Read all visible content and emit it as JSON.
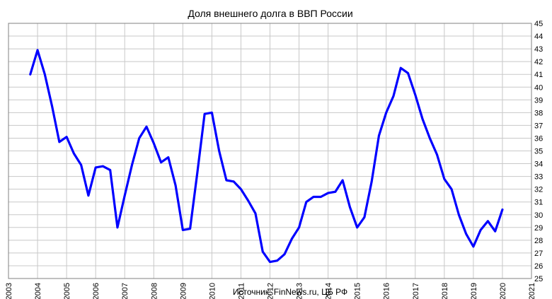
{
  "chart_data": {
    "type": "line",
    "title": "Доля внешнего долга в ВВП России",
    "source": "Источник: FinNews.ru, ЦБ РФ",
    "xlabel": "",
    "ylabel": "",
    "xlim": [
      2003,
      2021
    ],
    "ylim": [
      25,
      45
    ],
    "x_ticks": [
      2003,
      2004,
      2005,
      2006,
      2007,
      2008,
      2009,
      2010,
      2011,
      2012,
      2013,
      2014,
      2015,
      2016,
      2017,
      2018,
      2019,
      2020,
      2021
    ],
    "y_ticks": [
      25,
      26,
      27,
      28,
      29,
      30,
      31,
      32,
      33,
      34,
      35,
      36,
      37,
      38,
      39,
      40,
      41,
      42,
      43,
      44,
      45
    ],
    "y_axis_side": "right",
    "grid": true,
    "series": [
      {
        "color": "#0000ff",
        "x": [
          2003.75,
          2004.0,
          2004.25,
          2004.5,
          2004.75,
          2005.0,
          2005.25,
          2005.5,
          2005.75,
          2006.0,
          2006.25,
          2006.5,
          2006.75,
          2007.0,
          2007.25,
          2007.5,
          2007.75,
          2008.0,
          2008.25,
          2008.5,
          2008.75,
          2009.0,
          2009.25,
          2009.5,
          2009.75,
          2010.0,
          2010.25,
          2010.5,
          2010.75,
          2011.0,
          2011.25,
          2011.5,
          2011.75,
          2012.0,
          2012.25,
          2012.5,
          2012.75,
          2013.0,
          2013.25,
          2013.5,
          2013.75,
          2014.0,
          2014.25,
          2014.5,
          2014.75,
          2015.0,
          2015.25,
          2015.5,
          2015.75,
          2016.0,
          2016.25,
          2016.5,
          2016.75,
          2017.0,
          2017.25,
          2017.5,
          2017.75,
          2018.0,
          2018.25,
          2018.5,
          2018.75,
          2019.0,
          2019.25,
          2019.5,
          2019.75,
          2020.0
        ],
        "values": [
          41.0,
          42.9,
          41.0,
          38.5,
          35.7,
          36.1,
          34.8,
          33.9,
          31.5,
          33.7,
          33.8,
          33.5,
          29.0,
          31.5,
          33.9,
          36.0,
          36.9,
          35.6,
          34.1,
          34.5,
          32.3,
          28.8,
          28.9,
          33.3,
          37.9,
          38.0,
          35.0,
          32.7,
          32.6,
          32.0,
          31.1,
          30.1,
          27.1,
          26.3,
          26.4,
          26.9,
          28.1,
          29.0,
          31.0,
          31.4,
          31.4,
          31.7,
          31.8,
          32.7,
          30.6,
          29.0,
          29.8,
          32.6,
          36.2,
          38.0,
          39.3,
          41.5,
          41.1,
          39.4,
          37.5,
          36.0,
          34.7,
          32.8,
          32.0,
          30.0,
          28.5,
          27.5,
          28.8,
          29.5,
          28.7,
          30.4
        ]
      }
    ]
  }
}
